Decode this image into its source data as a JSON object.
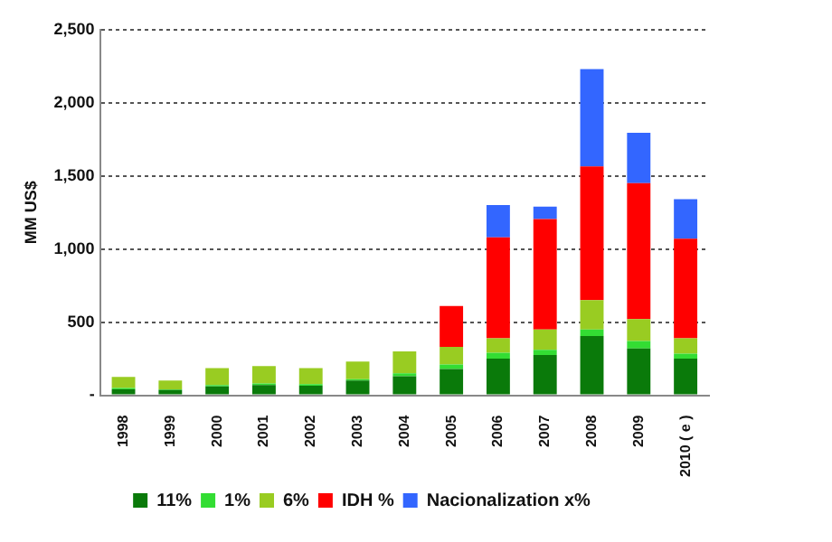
{
  "chart_data": {
    "type": "bar",
    "stacked": true,
    "ylabel": "MM US$",
    "categories": [
      "1998",
      "1999",
      "2000",
      "2001",
      "2002",
      "2003",
      "2004",
      "2005",
      "2006",
      "2007",
      "2008",
      "2009",
      "2010 ( e )"
    ],
    "series": [
      {
        "name": "11%",
        "color": "#0a7a0a",
        "values": [
          40,
          35,
          60,
          70,
          65,
          100,
          130,
          180,
          250,
          275,
          405,
          320,
          250
        ]
      },
      {
        "name": "1%",
        "color": "#33dd33",
        "values": [
          10,
          5,
          10,
          10,
          10,
          10,
          20,
          30,
          40,
          35,
          45,
          50,
          35
        ]
      },
      {
        "name": "6%",
        "color": "#99cc22",
        "values": [
          75,
          60,
          115,
          120,
          110,
          120,
          150,
          120,
          100,
          140,
          200,
          150,
          105
        ]
      },
      {
        "name": "IDH %",
        "color": "#ff0000",
        "values": [
          0,
          0,
          0,
          0,
          0,
          0,
          0,
          280,
          690,
          755,
          915,
          930,
          680
        ]
      },
      {
        "name": "Nacionalization x%",
        "color": "#3366ff",
        "values": [
          0,
          0,
          0,
          0,
          0,
          0,
          0,
          0,
          220,
          85,
          665,
          345,
          270
        ]
      }
    ],
    "ylim": [
      0,
      2500
    ],
    "yticks": [
      {
        "value": 0,
        "label": "-"
      },
      500,
      {
        "value": 1000,
        "label": "1,000"
      },
      {
        "value": 1500,
        "label": "1,500"
      },
      {
        "value": 2000,
        "label": "2,000"
      },
      {
        "value": 2500,
        "label": "2,500"
      }
    ],
    "grid": "y",
    "legend": "bottom"
  }
}
